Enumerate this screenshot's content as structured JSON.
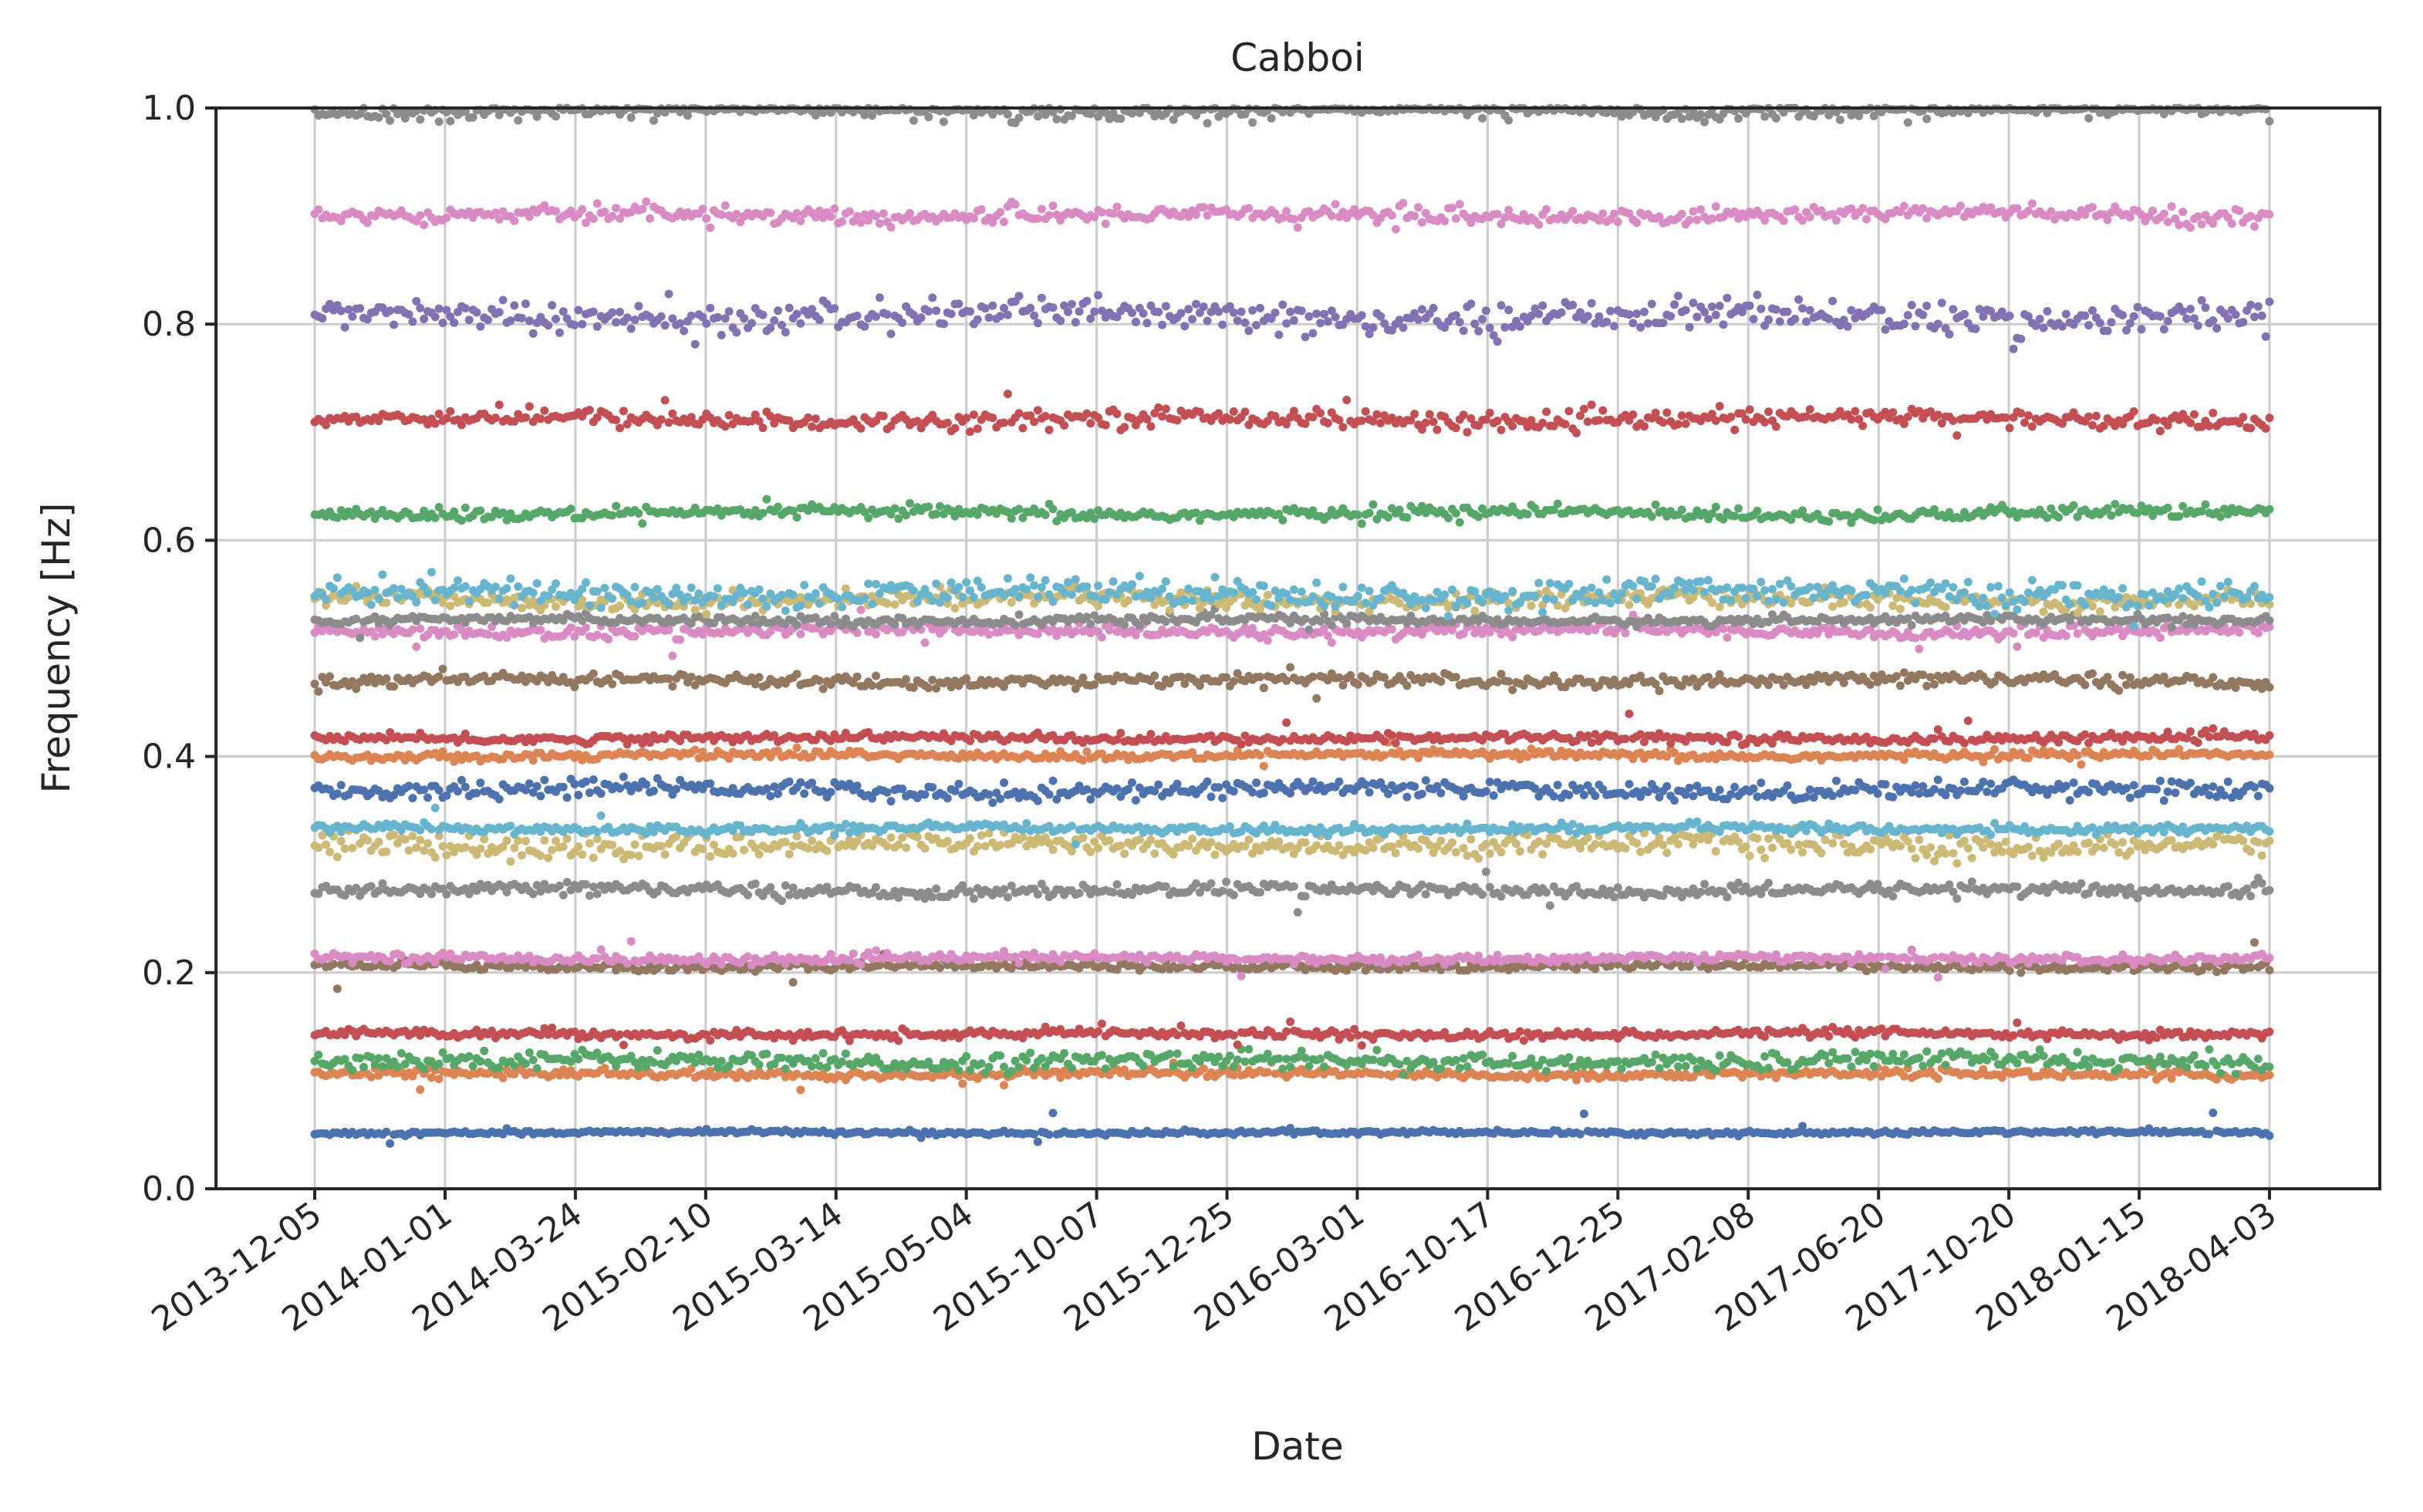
{
  "chart_data": {
    "type": "scatter",
    "title": "Cabboi",
    "xlabel": "Date",
    "ylabel": "Frequency [Hz]",
    "ylim": [
      0.0,
      1.0
    ],
    "yticks": [
      "0.0",
      "0.2",
      "0.4",
      "0.6",
      "0.8",
      "1.0"
    ],
    "x_axis": "categorical dates",
    "categories": [
      "2013-12-05",
      "2014-01-01",
      "2014-03-24",
      "2015-02-10",
      "2015-03-14",
      "2015-05-04",
      "2015-10-07",
      "2015-12-25",
      "2016-03-01",
      "2016-10-17",
      "2016-12-25",
      "2017-02-08",
      "2017-06-20",
      "2017-10-20",
      "2018-01-15",
      "2018-04-03"
    ],
    "grid": true,
    "series": [
      {
        "color": "#4c72b0",
        "mean": 0.052,
        "spread": 0.001
      },
      {
        "color": "#dd8452",
        "mean": 0.106,
        "spread": 0.002
      },
      {
        "color": "#55a868",
        "mean": 0.118,
        "spread": 0.004
      },
      {
        "color": "#c44e52",
        "mean": 0.143,
        "spread": 0.002
      },
      {
        "color": "#937860",
        "mean": 0.206,
        "spread": 0.002
      },
      {
        "color": "#da8bc3",
        "mean": 0.213,
        "spread": 0.002
      },
      {
        "color": "#8c8c8c",
        "mean": 0.276,
        "spread": 0.003
      },
      {
        "color": "#ccb974",
        "mean": 0.318,
        "spread": 0.005
      },
      {
        "color": "#64b5cd",
        "mean": 0.333,
        "spread": 0.002
      },
      {
        "color": "#4c72b0",
        "mean": 0.369,
        "spread": 0.004
      },
      {
        "color": "#dd8452",
        "mean": 0.401,
        "spread": 0.002
      },
      {
        "color": "#c44e52",
        "mean": 0.417,
        "spread": 0.002
      },
      {
        "color": "#937860",
        "mean": 0.47,
        "spread": 0.003
      },
      {
        "color": "#da8bc3",
        "mean": 0.516,
        "spread": 0.003
      },
      {
        "color": "#8c8c8c",
        "mean": 0.526,
        "spread": 0.002
      },
      {
        "color": "#ccb974",
        "mean": 0.545,
        "spread": 0.004
      },
      {
        "color": "#64b5cd",
        "mean": 0.551,
        "spread": 0.006
      },
      {
        "color": "#55a868",
        "mean": 0.625,
        "spread": 0.003
      },
      {
        "color": "#c44e52",
        "mean": 0.712,
        "spread": 0.004
      },
      {
        "color": "#8172b3",
        "mean": 0.807,
        "spread": 0.007
      },
      {
        "color": "#da8bc3",
        "mean": 0.901,
        "spread": 0.004
      },
      {
        "color": "#8c8c8c",
        "mean": 0.998,
        "spread": 0.004
      }
    ]
  }
}
